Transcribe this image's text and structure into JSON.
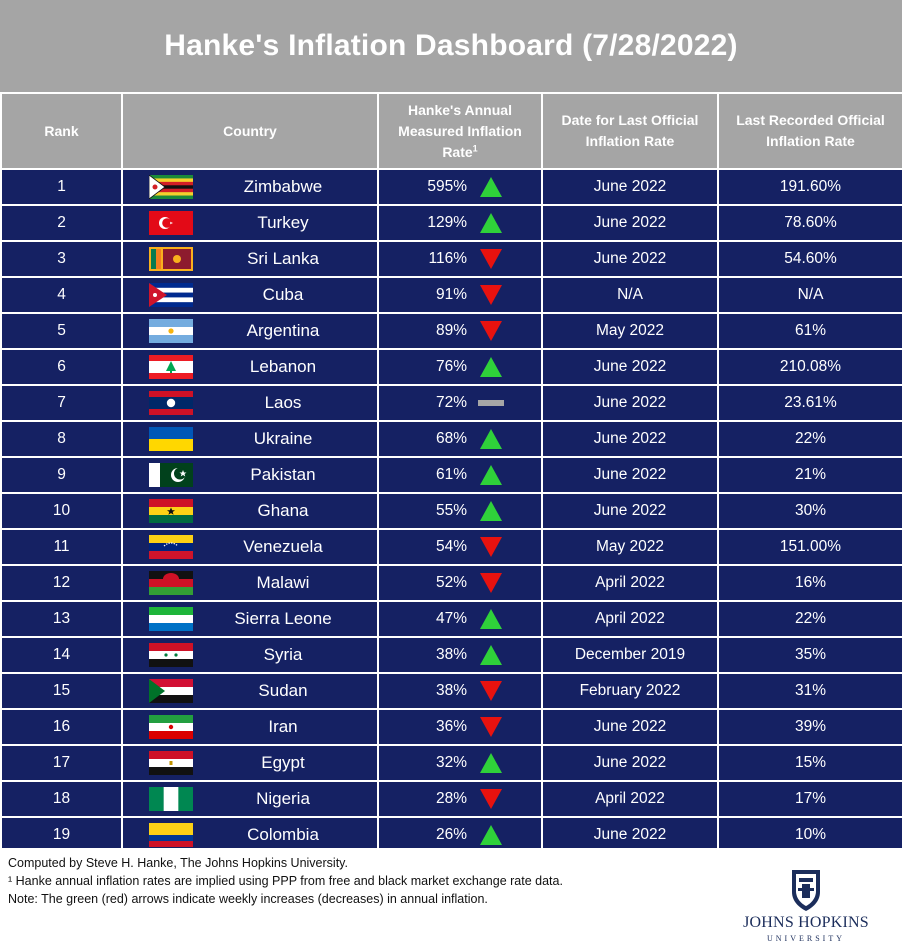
{
  "title": "Hanke's Inflation Dashboard (7/28/2022)",
  "headers": {
    "rank": "Rank",
    "country": "Country",
    "hanke_line1": "Hanke's Annual",
    "hanke_line2": "Measured Inflation",
    "hanke_line3": "Rate",
    "hanke_sup": "1",
    "date_line1": "Date for Last Official",
    "date_line2": "Inflation Rate",
    "official_line1": "Last Recorded Official",
    "official_line2": "Inflation Rate"
  },
  "colors": {
    "up": "#2fd13a",
    "down": "#e8120f",
    "flat": "#a6a6a6",
    "row_bg": "#152163",
    "header_bg": "#a5a5a5"
  },
  "rows": [
    {
      "rank": "1",
      "country": "Zimbabwe",
      "flag": "zimbabwe-flag",
      "hanke": "595%",
      "trend": "up",
      "date": "June 2022",
      "official": "191.60%"
    },
    {
      "rank": "2",
      "country": "Turkey",
      "flag": "turkey-flag",
      "hanke": "129%",
      "trend": "up",
      "date": "June 2022",
      "official": "78.60%"
    },
    {
      "rank": "3",
      "country": "Sri Lanka",
      "flag": "sri-lanka-flag",
      "hanke": "116%",
      "trend": "down",
      "date": "June 2022",
      "official": "54.60%"
    },
    {
      "rank": "4",
      "country": "Cuba",
      "flag": "cuba-flag",
      "hanke": "91%",
      "trend": "down",
      "date": "N/A",
      "official": "N/A"
    },
    {
      "rank": "5",
      "country": "Argentina",
      "flag": "argentina-flag",
      "hanke": "89%",
      "trend": "down",
      "date": "May 2022",
      "official": "61%"
    },
    {
      "rank": "6",
      "country": "Lebanon",
      "flag": "lebanon-flag",
      "hanke": "76%",
      "trend": "up",
      "date": "June 2022",
      "official": "210.08%"
    },
    {
      "rank": "7",
      "country": "Laos",
      "flag": "laos-flag",
      "hanke": "72%",
      "trend": "flat",
      "date": "June 2022",
      "official": "23.61%"
    },
    {
      "rank": "8",
      "country": "Ukraine",
      "flag": "ukraine-flag",
      "hanke": "68%",
      "trend": "up",
      "date": "June 2022",
      "official": "22%"
    },
    {
      "rank": "9",
      "country": "Pakistan",
      "flag": "pakistan-flag",
      "hanke": "61%",
      "trend": "up",
      "date": "June 2022",
      "official": "21%"
    },
    {
      "rank": "10",
      "country": "Ghana",
      "flag": "ghana-flag",
      "hanke": "55%",
      "trend": "up",
      "date": "June 2022",
      "official": "30%"
    },
    {
      "rank": "11",
      "country": "Venezuela",
      "flag": "venezuela-flag",
      "hanke": "54%",
      "trend": "down",
      "date": "May 2022",
      "official": "151.00%"
    },
    {
      "rank": "12",
      "country": "Malawi",
      "flag": "malawi-flag",
      "hanke": "52%",
      "trend": "down",
      "date": "April 2022",
      "official": "16%"
    },
    {
      "rank": "13",
      "country": "Sierra Leone",
      "flag": "sierra-leone-flag",
      "hanke": "47%",
      "trend": "up",
      "date": "April 2022",
      "official": "22%"
    },
    {
      "rank": "14",
      "country": "Syria",
      "flag": "syria-flag",
      "hanke": "38%",
      "trend": "up",
      "date": "December 2019",
      "official": "35%"
    },
    {
      "rank": "15",
      "country": "Sudan",
      "flag": "sudan-flag",
      "hanke": "38%",
      "trend": "down",
      "date": "February 2022",
      "official": "31%"
    },
    {
      "rank": "16",
      "country": "Iran",
      "flag": "iran-flag",
      "hanke": "36%",
      "trend": "down",
      "date": "June 2022",
      "official": "39%"
    },
    {
      "rank": "17",
      "country": "Egypt",
      "flag": "egypt-flag",
      "hanke": "32%",
      "trend": "up",
      "date": "June 2022",
      "official": "15%"
    },
    {
      "rank": "18",
      "country": "Nigeria",
      "flag": "nigeria-flag",
      "hanke": "28%",
      "trend": "down",
      "date": "April 2022",
      "official": "17%"
    },
    {
      "rank": "19",
      "country": "Colombia",
      "flag": "colombia-flag",
      "hanke": "26%",
      "trend": "up",
      "date": "June 2022",
      "official": "10%"
    }
  ],
  "footer": {
    "line1": "Computed by Steve H. Hanke, The Johns Hopkins University.",
    "line2": "¹ Hanke annual inflation rates are implied using PPP from free and black market exchange rate data.",
    "line3": "Note: The green (red) arrows indicate weekly increases (decreases) in annual inflation.",
    "logo_name": "JOHNS HOPKINS",
    "logo_sub": "UNIVERSITY"
  }
}
